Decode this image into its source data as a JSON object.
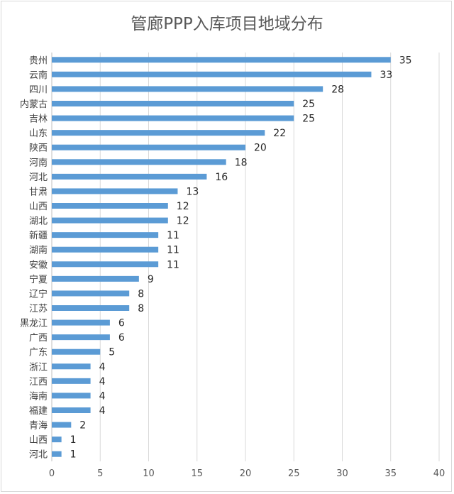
{
  "chart_data": {
    "type": "bar",
    "orientation": "horizontal",
    "title": "管廊PPP入库项目地域分布",
    "categories": [
      "贵州",
      "云南",
      "四川",
      "内蒙古",
      "吉林",
      "山东",
      "陕西",
      "河南",
      "河北",
      "甘肃",
      "山西",
      "湖北",
      "新疆",
      "湖南",
      "安徽",
      "宁夏",
      "辽宁",
      "江苏",
      "黑龙江",
      "广西",
      "广东",
      "浙江",
      "江西",
      "海南",
      "福建",
      "青海",
      "山西",
      "河北"
    ],
    "values": [
      35,
      33,
      28,
      25,
      25,
      22,
      20,
      18,
      16,
      13,
      12,
      12,
      11,
      11,
      11,
      9,
      8,
      8,
      6,
      6,
      5,
      4,
      4,
      4,
      4,
      2,
      1,
      1
    ],
    "xlim": [
      0,
      40
    ],
    "xticks": [
      0,
      5,
      10,
      15,
      20,
      25,
      30,
      35,
      40
    ],
    "grid": true,
    "legend": "none",
    "data_labels": true,
    "colors": {
      "bar": "#5b9bd5",
      "grid": "#d9d9d9",
      "axis": "#bfbfbf"
    }
  }
}
